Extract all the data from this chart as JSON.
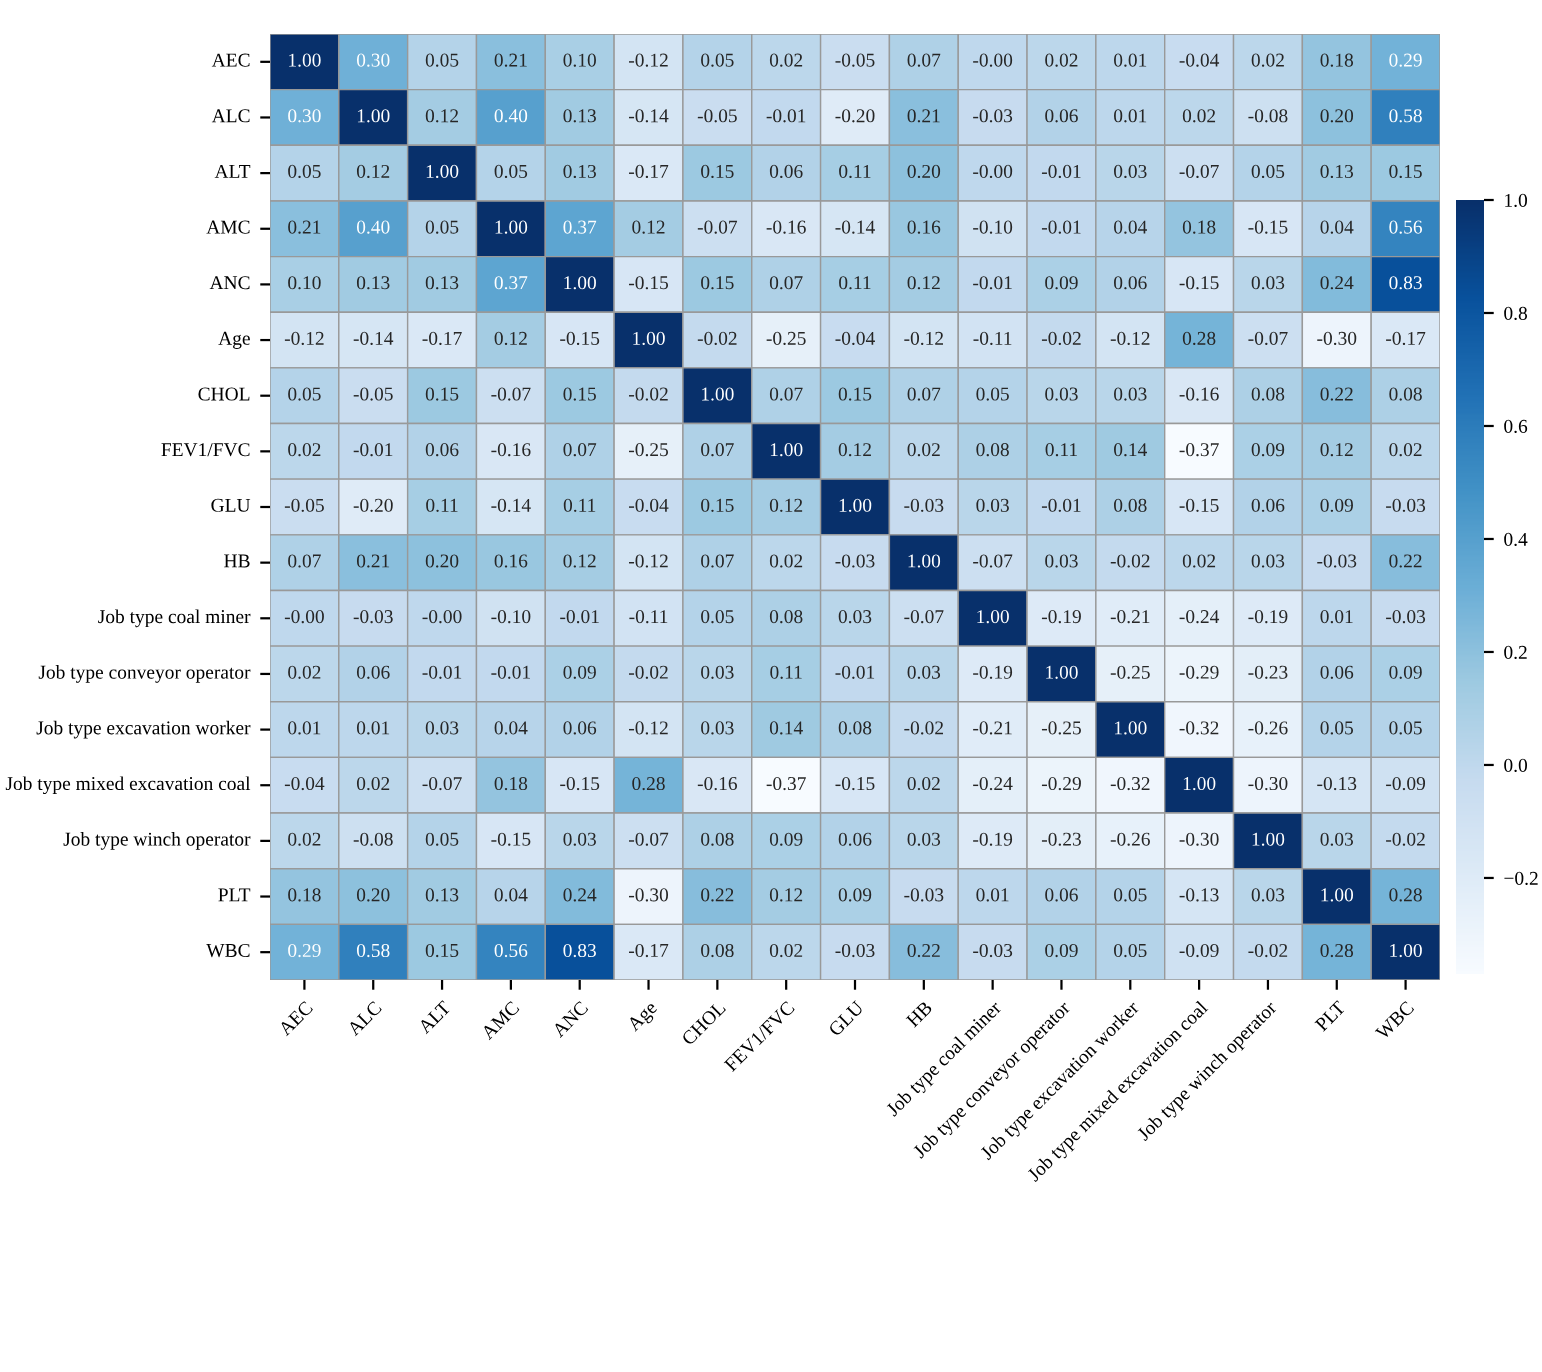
{
  "chart_data": {
    "type": "heatmap",
    "categories": [
      "AEC",
      "ALC",
      "ALT",
      "AMC",
      "ANC",
      "Age",
      "CHOL",
      "FEV1/FVC",
      "GLU",
      "HB",
      "Job type coal miner",
      "Job type conveyor operator",
      "Job type excavation worker",
      "Job type mixed excavation coal",
      "Job type winch operator",
      "PLT",
      "WBC"
    ],
    "y_categories": [
      "AEC",
      "ALC",
      "ALT",
      "AMC",
      "ANC",
      "Age",
      "CHOL",
      "FEV1/FVC",
      "GLU",
      "HB",
      "Job type coal miner",
      "Job type conveyor operator",
      "Job type excavation worker",
      "Job type mixed excavation coal",
      "Job type winch operator",
      "PLT",
      "WBC"
    ],
    "cells": [
      [
        1.0,
        0.3,
        0.05,
        0.21,
        0.1,
        -0.12,
        0.05,
        0.02,
        -0.05,
        0.07,
        -0.0,
        0.02,
        0.01,
        -0.04,
        0.02,
        0.18,
        0.29
      ],
      [
        0.3,
        1.0,
        0.12,
        0.4,
        0.13,
        -0.14,
        -0.05,
        -0.01,
        -0.2,
        0.21,
        -0.03,
        0.06,
        0.01,
        0.02,
        -0.08,
        0.2,
        0.58
      ],
      [
        0.05,
        0.12,
        1.0,
        0.05,
        0.13,
        -0.17,
        0.15,
        0.06,
        0.11,
        0.2,
        -0.0,
        -0.01,
        0.03,
        -0.07,
        0.05,
        0.13,
        0.15
      ],
      [
        0.21,
        0.4,
        0.05,
        1.0,
        0.37,
        0.12,
        -0.07,
        -0.16,
        -0.14,
        0.16,
        -0.1,
        -0.01,
        0.04,
        0.18,
        -0.15,
        0.04,
        0.56
      ],
      [
        0.1,
        0.13,
        0.13,
        0.37,
        1.0,
        -0.15,
        0.15,
        0.07,
        0.11,
        0.12,
        -0.01,
        0.09,
        0.06,
        -0.15,
        0.03,
        0.24,
        0.83
      ],
      [
        -0.12,
        -0.14,
        -0.17,
        0.12,
        -0.15,
        1.0,
        -0.02,
        -0.25,
        -0.04,
        -0.12,
        -0.11,
        -0.02,
        -0.12,
        0.28,
        -0.07,
        -0.3,
        -0.17
      ],
      [
        0.05,
        -0.05,
        0.15,
        -0.07,
        0.15,
        -0.02,
        1.0,
        0.07,
        0.15,
        0.07,
        0.05,
        0.03,
        0.03,
        -0.16,
        0.08,
        0.22,
        0.08
      ],
      [
        0.02,
        -0.01,
        0.06,
        -0.16,
        0.07,
        -0.25,
        0.07,
        1.0,
        0.12,
        0.02,
        0.08,
        0.11,
        0.14,
        -0.37,
        0.09,
        0.12,
        0.02
      ],
      [
        -0.05,
        -0.2,
        0.11,
        -0.14,
        0.11,
        -0.04,
        0.15,
        0.12,
        1.0,
        -0.03,
        0.03,
        -0.01,
        0.08,
        -0.15,
        0.06,
        0.09,
        -0.03
      ],
      [
        0.07,
        0.21,
        0.2,
        0.16,
        0.12,
        -0.12,
        0.07,
        0.02,
        -0.03,
        1.0,
        -0.07,
        0.03,
        -0.02,
        0.02,
        0.03,
        -0.03,
        0.22
      ],
      [
        -0.0,
        -0.03,
        -0.0,
        -0.1,
        -0.01,
        -0.11,
        0.05,
        0.08,
        0.03,
        -0.07,
        1.0,
        -0.19,
        -0.21,
        -0.24,
        -0.19,
        0.01,
        -0.03
      ],
      [
        0.02,
        0.06,
        -0.01,
        -0.01,
        0.09,
        -0.02,
        0.03,
        0.11,
        -0.01,
        0.03,
        -0.19,
        1.0,
        -0.25,
        -0.29,
        -0.23,
        0.06,
        0.09
      ],
      [
        0.01,
        0.01,
        0.03,
        0.04,
        0.06,
        -0.12,
        0.03,
        0.14,
        0.08,
        -0.02,
        -0.21,
        -0.25,
        1.0,
        -0.32,
        -0.26,
        0.05,
        0.05
      ],
      [
        -0.04,
        0.02,
        -0.07,
        0.18,
        -0.15,
        0.28,
        -0.16,
        -0.37,
        -0.15,
        0.02,
        -0.24,
        -0.29,
        -0.32,
        1.0,
        -0.3,
        -0.13,
        -0.09
      ],
      [
        0.02,
        -0.08,
        0.05,
        -0.15,
        0.03,
        -0.07,
        0.08,
        0.09,
        0.06,
        0.03,
        -0.19,
        -0.23,
        -0.26,
        -0.3,
        1.0,
        0.03,
        -0.02
      ],
      [
        0.18,
        0.2,
        0.13,
        0.04,
        0.24,
        -0.3,
        0.22,
        0.12,
        0.09,
        -0.03,
        0.01,
        0.06,
        0.05,
        -0.13,
        0.03,
        1.0,
        0.28
      ],
      [
        0.29,
        0.58,
        0.15,
        0.56,
        0.83,
        -0.17,
        0.08,
        0.02,
        -0.03,
        0.22,
        -0.03,
        0.09,
        0.05,
        -0.09,
        -0.02,
        0.28,
        1.0
      ]
    ],
    "cell_labels": [
      [
        "1.00",
        "0.30",
        "0.05",
        "0.21",
        "0.10",
        "-0.12",
        "0.05",
        "0.02",
        "-0.05",
        "0.07",
        "-0.00",
        "0.02",
        "0.01",
        "-0.04",
        "0.02",
        "0.18",
        "0.29"
      ],
      [
        "0.30",
        "1.00",
        "0.12",
        "0.40",
        "0.13",
        "-0.14",
        "-0.05",
        "-0.01",
        "-0.20",
        "0.21",
        "-0.03",
        "0.06",
        "0.01",
        "0.02",
        "-0.08",
        "0.20",
        "0.58"
      ],
      [
        "0.05",
        "0.12",
        "1.00",
        "0.05",
        "0.13",
        "-0.17",
        "0.15",
        "0.06",
        "0.11",
        "0.20",
        "-0.00",
        "-0.01",
        "0.03",
        "-0.07",
        "0.05",
        "0.13",
        "0.15"
      ],
      [
        "0.21",
        "0.40",
        "0.05",
        "1.00",
        "0.37",
        "0.12",
        "-0.07",
        "-0.16",
        "-0.14",
        "0.16",
        "-0.10",
        "-0.01",
        "0.04",
        "0.18",
        "-0.15",
        "0.04",
        "0.56"
      ],
      [
        "0.10",
        "0.13",
        "0.13",
        "0.37",
        "1.00",
        "-0.15",
        "0.15",
        "0.07",
        "0.11",
        "0.12",
        "-0.01",
        "0.09",
        "0.06",
        "-0.15",
        "0.03",
        "0.24",
        "0.83"
      ],
      [
        "-0.12",
        "-0.14",
        "-0.17",
        "0.12",
        "-0.15",
        "1.00",
        "-0.02",
        "-0.25",
        "-0.04",
        "-0.12",
        "-0.11",
        "-0.02",
        "-0.12",
        "0.28",
        "-0.07",
        "-0.30",
        "-0.17"
      ],
      [
        "0.05",
        "-0.05",
        "0.15",
        "-0.07",
        "0.15",
        "-0.02",
        "1.00",
        "0.07",
        "0.15",
        "0.07",
        "0.05",
        "0.03",
        "0.03",
        "-0.16",
        "0.08",
        "0.22",
        "0.08"
      ],
      [
        "0.02",
        "-0.01",
        "0.06",
        "-0.16",
        "0.07",
        "-0.25",
        "0.07",
        "1.00",
        "0.12",
        "0.02",
        "0.08",
        "0.11",
        "0.14",
        "-0.37",
        "0.09",
        "0.12",
        "0.02"
      ],
      [
        "-0.05",
        "-0.20",
        "0.11",
        "-0.14",
        "0.11",
        "-0.04",
        "0.15",
        "0.12",
        "1.00",
        "-0.03",
        "0.03",
        "-0.01",
        "0.08",
        "-0.15",
        "0.06",
        "0.09",
        "-0.03"
      ],
      [
        "0.07",
        "0.21",
        "0.20",
        "0.16",
        "0.12",
        "-0.12",
        "0.07",
        "0.02",
        "-0.03",
        "1.00",
        "-0.07",
        "0.03",
        "-0.02",
        "0.02",
        "0.03",
        "-0.03",
        "0.22"
      ],
      [
        "-0.00",
        "-0.03",
        "-0.00",
        "-0.10",
        "-0.01",
        "-0.11",
        "0.05",
        "0.08",
        "0.03",
        "-0.07",
        "1.00",
        "-0.19",
        "-0.21",
        "-0.24",
        "-0.19",
        "0.01",
        "-0.03"
      ],
      [
        "0.02",
        "0.06",
        "-0.01",
        "-0.01",
        "0.09",
        "-0.02",
        "0.03",
        "0.11",
        "-0.01",
        "0.03",
        "-0.19",
        "1.00",
        "-0.25",
        "-0.29",
        "-0.23",
        "0.06",
        "0.09"
      ],
      [
        "0.01",
        "0.01",
        "0.03",
        "0.04",
        "0.06",
        "-0.12",
        "0.03",
        "0.14",
        "0.08",
        "-0.02",
        "-0.21",
        "-0.25",
        "1.00",
        "-0.32",
        "-0.26",
        "0.05",
        "0.05"
      ],
      [
        "-0.04",
        "0.02",
        "-0.07",
        "0.18",
        "-0.15",
        "0.28",
        "-0.16",
        "-0.37",
        "-0.15",
        "0.02",
        "-0.24",
        "-0.29",
        "-0.32",
        "1.00",
        "-0.30",
        "-0.13",
        "-0.09"
      ],
      [
        "0.02",
        "-0.08",
        "0.05",
        "-0.15",
        "0.03",
        "-0.07",
        "0.08",
        "0.09",
        "0.06",
        "0.03",
        "-0.19",
        "-0.23",
        "-0.26",
        "-0.30",
        "1.00",
        "0.03",
        "-0.02"
      ],
      [
        "0.18",
        "0.20",
        "0.13",
        "0.04",
        "0.24",
        "-0.30",
        "0.22",
        "0.12",
        "0.09",
        "-0.03",
        "0.01",
        "0.06",
        "0.05",
        "-0.13",
        "0.03",
        "1.00",
        "0.28"
      ],
      [
        "0.29",
        "0.58",
        "0.15",
        "0.56",
        "0.83",
        "-0.17",
        "0.08",
        "0.02",
        "-0.03",
        "0.22",
        "-0.03",
        "0.09",
        "0.05",
        "-0.09",
        "-0.02",
        "0.28",
        "1.00"
      ]
    ],
    "clim": [
      -0.37,
      1.0
    ],
    "cticks": [
      {
        "value": -0.2,
        "label": "−0.2"
      },
      {
        "value": 0,
        "label": "0.0"
      },
      0.2,
      0.4,
      0.6,
      0.8,
      {
        "value": 1,
        "label": "1.0"
      }
    ]
  }
}
